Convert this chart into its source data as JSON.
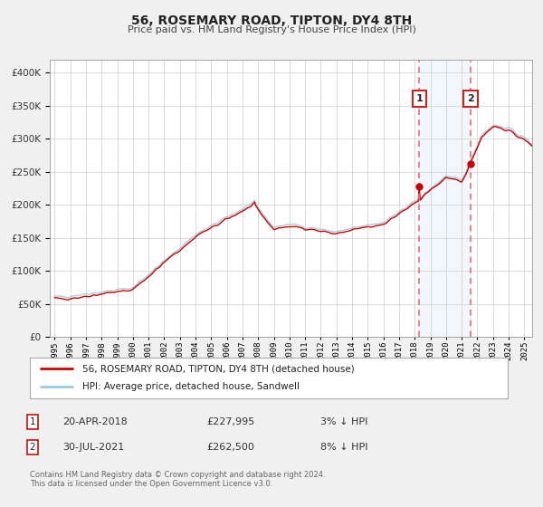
{
  "title": "56, ROSEMARY ROAD, TIPTON, DY4 8TH",
  "subtitle": "Price paid vs. HM Land Registry's House Price Index (HPI)",
  "legend_line1": "56, ROSEMARY ROAD, TIPTON, DY4 8TH (detached house)",
  "legend_line2": "HPI: Average price, detached house, Sandwell",
  "annotation1_date": "20-APR-2018",
  "annotation1_price": "£227,995",
  "annotation1_hpi": "3% ↓ HPI",
  "annotation1_year": 2018.3,
  "annotation1_value": 227995,
  "annotation2_date": "30-JUL-2021",
  "annotation2_price": "£262,500",
  "annotation2_hpi": "8% ↓ HPI",
  "annotation2_year": 2021.58,
  "annotation2_value": 262500,
  "property_color": "#cc0000",
  "hpi_color": "#9ecae1",
  "vline_color": "#e87070",
  "shade_color": "#dce9f5",
  "background_color": "#f0f0f0",
  "plot_bg_color": "#ffffff",
  "grid_color": "#cccccc",
  "footer_text": "Contains HM Land Registry data © Crown copyright and database right 2024.\nThis data is licensed under the Open Government Licence v3.0.",
  "ylim": [
    0,
    420000
  ],
  "xlim_start": 1994.7,
  "xlim_end": 2025.5
}
